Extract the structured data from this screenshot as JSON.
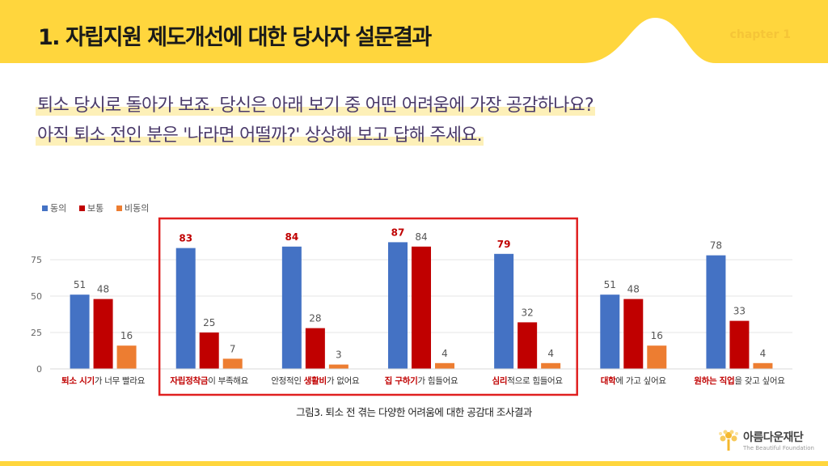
{
  "header": {
    "title": "1. 자립지원 제도개선에 대한 당사자 설문결과",
    "chapter": "chapter 1"
  },
  "question": {
    "line1": "퇴소 당시로 돌아가 보죠. 당신은 아래 보기 중 어떤 어려움에 가장 공감하나요?",
    "line2": "아직 퇴소 전인 분은 '나라면 어떨까?' 상상해 보고 답해 주세요."
  },
  "caption": "그림3. 퇴소 전 겪는 다양한 어려움에 대한 공감대 조사결과",
  "logo": {
    "name": "아름다운재단",
    "sub": "The Beautiful Foundation"
  },
  "colors": {
    "accent_yellow": "#ffd63d",
    "series_agree": "#4472c4",
    "series_neutral": "#c00000",
    "series_disagree": "#ed7d31",
    "highlight_red": "#c00000",
    "box_red": "#e02020"
  },
  "chart_data": {
    "type": "bar",
    "categories": [
      [
        {
          "t": "퇴소 시기",
          "red": true
        },
        {
          "t": "가 너무 빨라요",
          "red": false
        }
      ],
      [
        {
          "t": "자립정착금",
          "red": true
        },
        {
          "t": "이 부족해요",
          "red": false
        }
      ],
      [
        {
          "t": "안정적인 ",
          "red": false
        },
        {
          "t": "생활비",
          "red": true
        },
        {
          "t": "가 없어요",
          "red": false
        }
      ],
      [
        {
          "t": "집 구하기",
          "red": true
        },
        {
          "t": "가 힘들어요",
          "red": false
        }
      ],
      [
        {
          "t": "심리",
          "red": true
        },
        {
          "t": "적으로 힘들어요",
          "red": false
        }
      ],
      [
        {
          "t": "대학",
          "red": true
        },
        {
          "t": "에 가고 싶어요",
          "red": false
        }
      ],
      [
        {
          "t": "원하는 직업",
          "red": true
        },
        {
          "t": "을 갖고 싶어요",
          "red": false
        }
      ]
    ],
    "series": [
      {
        "name": "동의",
        "values": [
          51,
          83,
          84,
          87,
          79,
          51,
          78
        ]
      },
      {
        "name": "보통",
        "values": [
          48,
          25,
          28,
          84,
          32,
          48,
          33
        ]
      },
      {
        "name": "비동의",
        "values": [
          16,
          7,
          3,
          4,
          4,
          16,
          4
        ]
      }
    ],
    "highlighted_categories": [
      1,
      2,
      3,
      4
    ],
    "yticks": [
      0,
      25,
      50,
      75
    ],
    "ylim": [
      0,
      100
    ],
    "grid": true,
    "legend": "top-left"
  }
}
